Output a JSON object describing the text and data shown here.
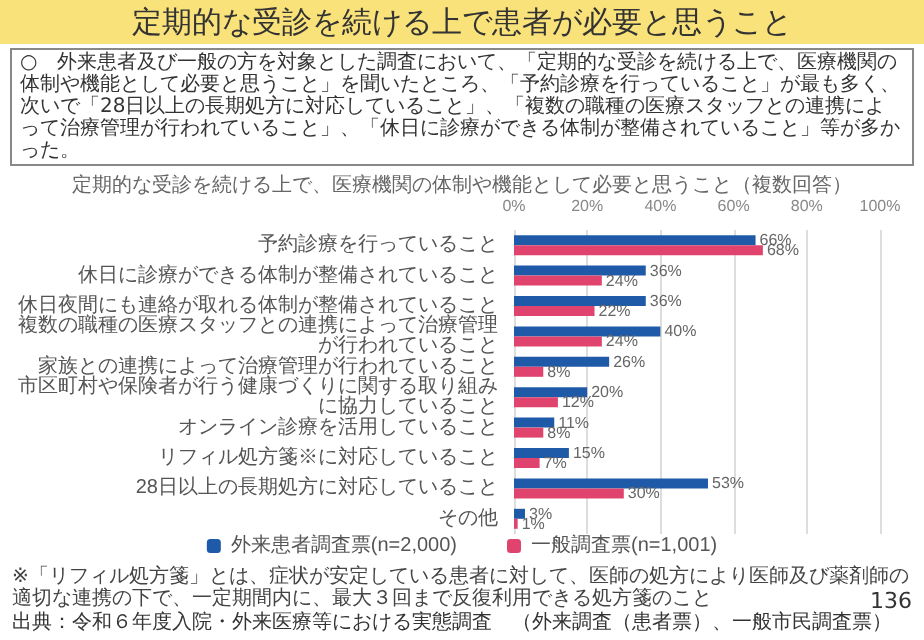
{
  "chart_data": {
    "type": "bar",
    "orientation": "horizontal",
    "title": "定期的な受診を続ける上で患者が必要と思うこと",
    "subtitle": "定期的な受診を続ける上で、医療機関の体制や機能として必要と思うこと（複数回答）",
    "categories": [
      "予約診療を行っていること",
      "休日に診療ができる体制が整備されていること",
      "休日夜間にも連絡が取れる体制が整備されていること",
      "複数の職種の医療スタッフとの連携によって治療管理が行われていること",
      "家族との連携によって治療管理が行われていること",
      "市区町村や保険者が行う健康づくりに関する取り組みに協力していること",
      "オンライン診療を活用していること",
      "リフィル処方箋※に対応していること",
      "28日以上の長期処方に対応していること",
      "その他"
    ],
    "series": [
      {
        "name": "外来患者調査票(n=2,000)",
        "color": "#1f5aa8",
        "values": [
          66,
          36,
          36,
          40,
          26,
          20,
          11,
          15,
          53,
          3
        ],
        "value_labels": [
          "66%",
          "36%",
          "36%",
          "40%",
          "26%",
          "20%",
          "11%",
          "15%",
          "53%",
          "3%"
        ]
      },
      {
        "name": "一般調査票(n=1,001)",
        "color": "#e0446e",
        "values": [
          68,
          24,
          22,
          24,
          8,
          12,
          8,
          7,
          30,
          1
        ],
        "value_labels": [
          "68%",
          "24%",
          "22%",
          "24%",
          "8%",
          "12%",
          "8%",
          "7%",
          "30%",
          "1%"
        ]
      }
    ],
    "xlim": [
      0,
      100
    ],
    "xticks": [
      {
        "value": 0,
        "label": "0%"
      },
      {
        "value": 20,
        "label": "20%"
      },
      {
        "value": 40,
        "label": "40%"
      },
      {
        "value": 60,
        "label": "60%"
      },
      {
        "value": 80,
        "label": "80%"
      },
      {
        "value": 100,
        "label": "100%"
      }
    ],
    "grid": "x",
    "legend": "bottom",
    "annotations": [
      "○　外来患者及び一般の方を対象とした調査において、「定期的な受診を続ける上で、医療機関の体制や機能として必要と思うこと」を聞いたところ、「予約診療を行っていること」が最も多く、次いで「28日以上の長期処方に対応していること」、「複数の職種の医療スタッフとの連携によって治療管理が行われていること」、「休日に診療ができる体制が整備されていること」等が多かった。",
      "※「リフィル処方箋」とは、症状が安定している患者に対して、医師の処方により医師及び薬剤師の適切な連携の下で、一定期間内に、最大３回まで反復利用できる処方箋のこと",
      "出典：令和６年度入院・外来医療等における実態調査　（外来調査（患者票）、一般市民調査票）",
      "136"
    ]
  }
}
